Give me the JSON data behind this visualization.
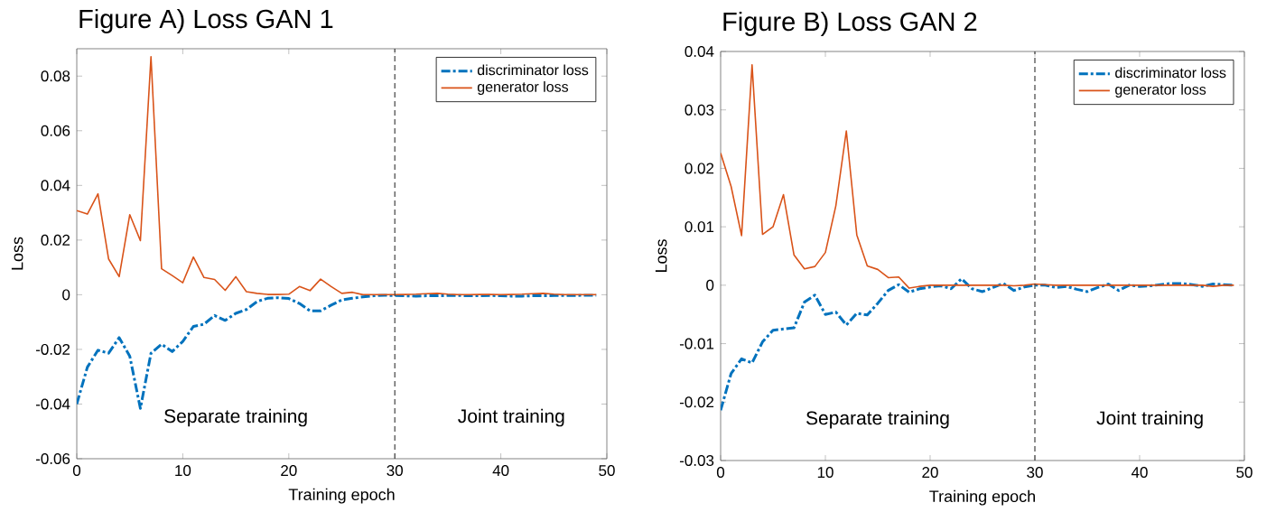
{
  "chart_data": [
    {
      "type": "line",
      "title": "Figure A) Loss GAN 1",
      "xlabel": "Training epoch",
      "ylabel": "Loss",
      "x": [
        0,
        1,
        2,
        3,
        4,
        5,
        6,
        7,
        8,
        9,
        10,
        11,
        12,
        13,
        14,
        15,
        16,
        17,
        18,
        19,
        20,
        21,
        22,
        23,
        24,
        25,
        26,
        27,
        28,
        29,
        30,
        31,
        32,
        33,
        34,
        35,
        36,
        37,
        38,
        39,
        40,
        41,
        42,
        43,
        44,
        45,
        46,
        47,
        48,
        49
      ],
      "series": [
        {
          "name": "discriminator loss",
          "color": "#0072bd",
          "line_style": "dashed",
          "values": [
            -0.04,
            -0.0265,
            -0.0203,
            -0.0214,
            -0.0157,
            -0.0225,
            -0.0416,
            -0.0214,
            -0.0181,
            -0.0208,
            -0.0171,
            -0.0116,
            -0.0108,
            -0.0076,
            -0.0094,
            -0.0068,
            -0.0054,
            -0.0025,
            -0.0013,
            -0.0011,
            -0.0014,
            -0.0032,
            -0.0059,
            -0.0059,
            -0.0038,
            -0.0019,
            -0.0013,
            -0.0008,
            -0.0004,
            -0.0002,
            -0.0003,
            -0.0004,
            -0.0005,
            -0.0004,
            -0.0004,
            -0.0003,
            -0.0003,
            -0.0004,
            -0.0004,
            -0.0003,
            -0.0004,
            -0.0005,
            -0.0005,
            -0.0004,
            -0.0004,
            -0.0003,
            -0.0003,
            -0.0003,
            -0.0002,
            -0.0002
          ]
        },
        {
          "name": "generator loss",
          "color": "#d95319",
          "line_style": "solid",
          "values": [
            0.0308,
            0.0295,
            0.0369,
            0.0131,
            0.0066,
            0.0293,
            0.0198,
            0.0871,
            0.0095,
            0.007,
            0.0044,
            0.0138,
            0.0063,
            0.0056,
            0.0016,
            0.0066,
            0.0011,
            0.0005,
            0.0001,
            0.0001,
            0.0002,
            0.003,
            0.0015,
            0.0057,
            0.003,
            0.0005,
            0.0009,
            0.0,
            0.0,
            0.0,
            0.0,
            0.0001,
            0.0002,
            0.0004,
            0.0005,
            0.0002,
            0.0,
            0.0,
            0.0001,
            0.0001,
            0.0,
            0.0001,
            0.0002,
            0.0004,
            0.0005,
            0.0002,
            0.0,
            0.0,
            0.0,
            0.0
          ]
        }
      ],
      "xlim": [
        0,
        50
      ],
      "ylim": [
        -0.06,
        0.09
      ],
      "xticks": [
        0,
        10,
        20,
        30,
        40,
        50
      ],
      "yticks": [
        -0.06,
        -0.04,
        -0.02,
        0,
        0.02,
        0.04,
        0.06,
        0.08
      ],
      "ref_lines": [
        {
          "axis": "x",
          "value": 30,
          "color": "#404040",
          "line_style": "dashed"
        }
      ],
      "annotations": [
        "Separate training",
        "Joint training"
      ],
      "legend": "top right",
      "grid": false
    },
    {
      "type": "line",
      "title": "Figure B) Loss GAN 2",
      "xlabel": "Training epoch",
      "ylabel": "Loss",
      "x": [
        0,
        1,
        2,
        3,
        4,
        5,
        6,
        7,
        8,
        9,
        10,
        11,
        12,
        13,
        14,
        15,
        16,
        17,
        18,
        19,
        20,
        21,
        22,
        23,
        24,
        25,
        26,
        27,
        28,
        29,
        30,
        31,
        32,
        33,
        34,
        35,
        36,
        37,
        38,
        39,
        40,
        41,
        42,
        43,
        44,
        45,
        46,
        47,
        48,
        49
      ],
      "series": [
        {
          "name": "discriminator loss",
          "color": "#0072bd",
          "line_style": "dashed",
          "values": [
            -0.0214,
            -0.0151,
            -0.0126,
            -0.0133,
            -0.0097,
            -0.0077,
            -0.0075,
            -0.0073,
            -0.0029,
            -0.0017,
            -0.005,
            -0.0046,
            -0.0068,
            -0.0048,
            -0.0051,
            -0.0031,
            -0.0009,
            0.0001,
            -0.0012,
            -0.0006,
            -0.0003,
            -0.0001,
            -0.0006,
            0.0011,
            -0.0006,
            -0.0011,
            -0.0004,
            0.0003,
            -0.0009,
            -0.0003,
            0.0,
            0.0,
            -0.0004,
            -0.0002,
            -0.0007,
            -0.0011,
            -0.0004,
            0.0002,
            -0.0009,
            0.0,
            -0.0002,
            -0.0001,
            0.0001,
            0.0003,
            0.0003,
            0.0001,
            -0.0002,
            0.0002,
            0.0001,
            0.0
          ]
        },
        {
          "name": "generator loss",
          "color": "#d95319",
          "line_style": "solid",
          "values": [
            0.0226,
            0.0169,
            0.0085,
            0.0377,
            0.0087,
            0.01,
            0.0155,
            0.0052,
            0.0028,
            0.0032,
            0.0056,
            0.0136,
            0.0264,
            0.0086,
            0.0033,
            0.0027,
            0.0013,
            0.0014,
            -0.0005,
            -0.0002,
            0.0,
            0.0,
            0.0,
            0.0,
            0.0,
            0.0,
            0.0,
            0.0,
            -0.0001,
            0.0,
            0.0002,
            0.0001,
            0.0,
            0.0,
            0.0,
            0.0,
            0.0,
            0.0,
            0.0,
            0.0,
            0.0,
            0.0,
            0.0,
            0.0,
            0.0,
            0.0,
            0.0,
            -0.0002,
            0.0,
            0.0
          ]
        }
      ],
      "xlim": [
        0,
        50
      ],
      "ylim": [
        -0.03,
        0.04
      ],
      "xticks": [
        0,
        10,
        20,
        30,
        40,
        50
      ],
      "yticks": [
        -0.03,
        -0.02,
        -0.01,
        0,
        0.01,
        0.02,
        0.03,
        0.04
      ],
      "ref_lines": [
        {
          "axis": "x",
          "value": 30,
          "color": "#404040",
          "line_style": "dashed"
        }
      ],
      "annotations": [
        "Separate training",
        "Joint training"
      ],
      "legend": "top right",
      "grid": false
    }
  ]
}
